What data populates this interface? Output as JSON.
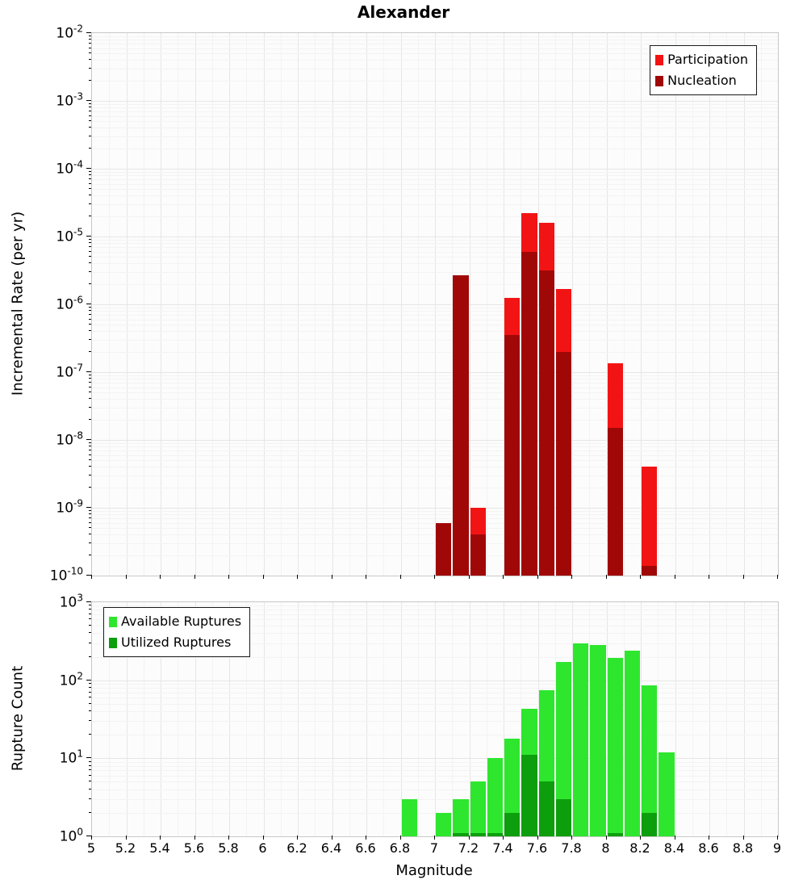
{
  "title": "Alexander",
  "xlabel": "Magnitude",
  "x_ticks": [
    "5",
    "5.2",
    "5.4",
    "5.6",
    "5.8",
    "6",
    "6.2",
    "6.4",
    "6.6",
    "6.8",
    "7",
    "7.2",
    "7.4",
    "7.6",
    "7.8",
    "8",
    "8.2",
    "8.4",
    "8.6",
    "8.8",
    "9"
  ],
  "chart_data": "see charts",
  "charts": [
    {
      "type": "bar",
      "panel": "incremental-rate",
      "ylabel": "Incremental Rate (per yr)",
      "ylog": true,
      "ymin": 1e-10,
      "ymax": 0.01,
      "y_tick_exponents": [
        -2,
        -3,
        -4,
        -5,
        -6,
        -7,
        -8,
        -9,
        -10
      ],
      "xmin": 5,
      "xmax": 9,
      "bin_width": 0.1,
      "bins": [
        7.0,
        7.1,
        7.2,
        7.4,
        7.5,
        7.6,
        7.7,
        8.0,
        8.2
      ],
      "legend_position": "top-right",
      "series": [
        {
          "name": "Participation",
          "color": "#f21414",
          "values": [
            6e-10,
            2.7e-06,
            1e-09,
            1.25e-06,
            2.2e-05,
            1.6e-05,
            1.7e-06,
            1.35e-07,
            4e-09
          ]
        },
        {
          "name": "Nucleation",
          "color": "#a00808",
          "values": [
            6e-10,
            2.7e-06,
            4e-10,
            3.5e-07,
            6e-06,
            3.2e-06,
            2e-07,
            1.5e-08,
            1.4e-10
          ]
        }
      ]
    },
    {
      "type": "bar",
      "panel": "rupture-count",
      "ylabel": "Rupture Count",
      "ylog": true,
      "ymin": 1,
      "ymax": 1000,
      "y_tick_exponents": [
        3,
        2,
        1,
        0
      ],
      "xmin": 5,
      "xmax": 9,
      "bin_width": 0.1,
      "bins": [
        6.8,
        7.0,
        7.1,
        7.2,
        7.3,
        7.4,
        7.5,
        7.6,
        7.7,
        7.8,
        7.9,
        8.0,
        8.1,
        8.2,
        8.3
      ],
      "legend_position": "top-left",
      "series": [
        {
          "name": "Available Ruptures",
          "color": "#2ee62e",
          "values": [
            3,
            2,
            3,
            5,
            10,
            18,
            43,
            75,
            170,
            300,
            280,
            195,
            240,
            85,
            12
          ]
        },
        {
          "name": "Utilized Ruptures",
          "color": "#0d9e0d",
          "values": [
            0,
            0,
            1,
            1,
            1,
            2,
            11,
            5,
            3,
            0,
            0,
            1,
            0,
            2,
            0
          ]
        }
      ]
    }
  ]
}
